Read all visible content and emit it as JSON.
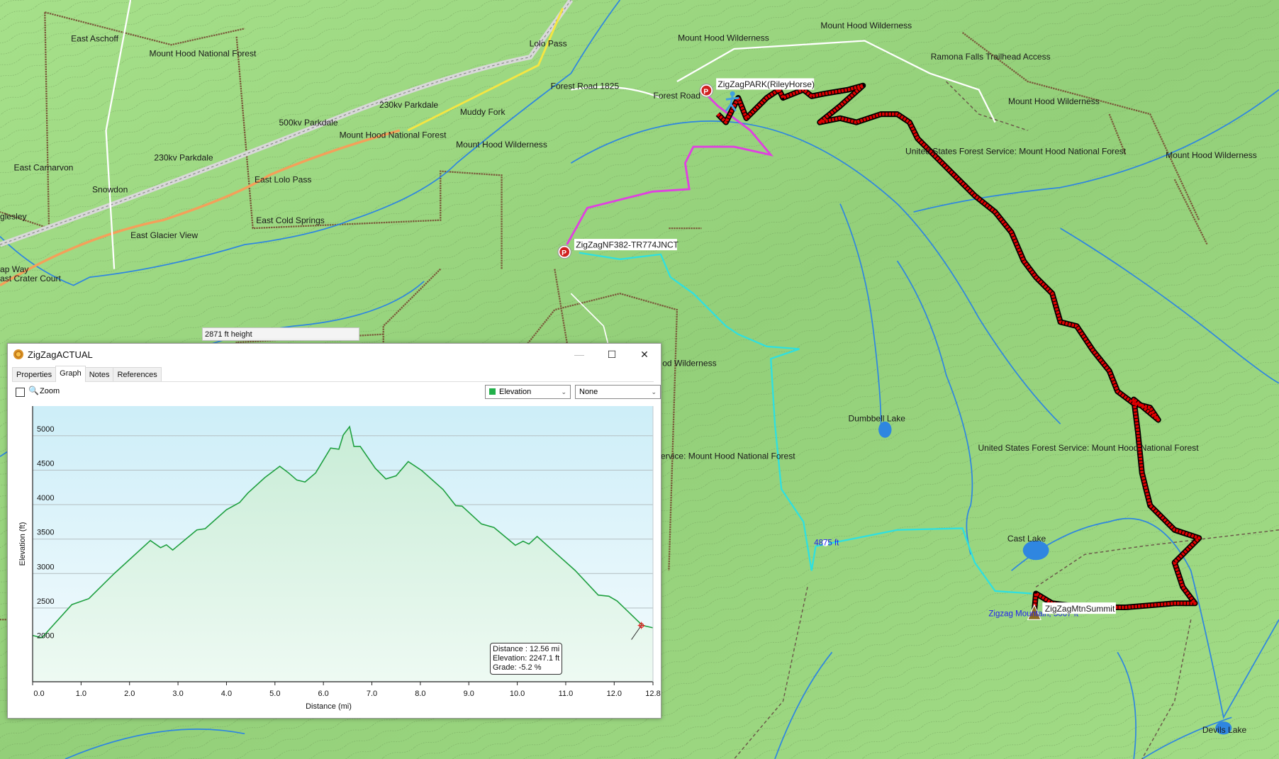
{
  "map": {
    "hover_tooltip": "2871 ft height",
    "labels": {
      "east_aschoff": "East Aschoff",
      "mhnf_1": "Mount Hood National Forest",
      "lolo_pass": "Lolo Pass",
      "forest_road_1825": "Forest Road 1825",
      "parkdale_230_a": "230kv Parkdale",
      "muddy_fork": "Muddy Fork",
      "parkdale_500": "500kv Parkdale",
      "mhnf_2": "Mount Hood National Forest",
      "mhw_1": "Mount Hood Wilderness",
      "east_carnarvon": "East Carnarvon",
      "parkdale_230_b": "230kv Parkdale",
      "east_lolo_pass": "East Lolo Pass",
      "snowdon": "Snowdon",
      "east_cold_springs": "East Cold Springs",
      "east_glacier_view": "East Glacier View",
      "glesley": "glesley",
      "ap_way": "ap Way",
      "crater_court": "ast Crater Court",
      "mhw_2": "Mount Hood Wilderness",
      "mhw_3": "Mount Hood Wilderness",
      "ramona": "Ramona Falls Trailhead Access",
      "mhw_4": "Mount Hood Wilderness",
      "usfs_1": "United States Forest Service: Mount Hood National Forest",
      "mhw_5": "Mount Hood Wilderness",
      "forest_road": "Forest Road",
      "dumbbell": "Dumbbell Lake",
      "usfs_2": "United States Forest Service: Mount Hood National Forest",
      "usfs_3": "ervice: Mount Hood National Forest",
      "od_wilderness": "od Wilderness",
      "cast_lake": "Cast Lake",
      "elev_4875": "4875 ft",
      "zigzag_mtn": "Zigzag Mountain, 5067 ft",
      "devils_lake": "Devils Lake"
    },
    "waypoints": {
      "park": "ZigZagPARK(RileyHorse)",
      "junction": "ZigZagNF382-TR774JNCT",
      "summit": "ZigZagMtnSummit"
    },
    "colors": {
      "track": "#e00000",
      "route_pink": "#e040e0",
      "route_cyan": "#2ee0e0",
      "water": "#2f86e0",
      "terrain": "#9fdc84"
    }
  },
  "dialog": {
    "title": "ZigZagACTUAL",
    "controls": {
      "minimize": "—",
      "maximize": "☐",
      "close": "✕"
    },
    "tabs": [
      {
        "label": "Properties",
        "active": false
      },
      {
        "label": "Graph",
        "active": true
      },
      {
        "label": "Notes",
        "active": false
      },
      {
        "label": "References",
        "active": false
      }
    ],
    "toolbar": {
      "zoom_checked": false,
      "zoom_label": "Zoom",
      "series_select": "Elevation",
      "series_color": "#22b04a",
      "secondary_select": "None"
    },
    "tooltip": {
      "distance": "Distance : 12.56 mi",
      "elevation": "Elevation: 2247.1 ft",
      "grade": "Grade: -5.2 %"
    }
  },
  "chart_data": {
    "type": "area",
    "xlabel": "Distance  (mi)",
    "ylabel": "Elevation (ft)",
    "xlim": [
      0,
      12.8
    ],
    "ylim": [
      1430,
      5430
    ],
    "x_ticks": [
      "0.0",
      "1.0",
      "2.0",
      "3.0",
      "4.0",
      "5.0",
      "6.0",
      "7.0",
      "8.0",
      "9.0",
      "10.0",
      "11.0",
      "12.0",
      "12.8"
    ],
    "y_ticks": [
      "2000",
      "2500",
      "3000",
      "3500",
      "4000",
      "4500",
      "5000"
    ],
    "grid": true,
    "line_color": "#1fa040",
    "series": [
      {
        "x": [
          0,
          0.19,
          0.81,
          1.16,
          1.68,
          2.43,
          2.64,
          2.76,
          2.89,
          3.39,
          3.56,
          4.0,
          4.27,
          4.44,
          4.79,
          5.1,
          5.27,
          5.45,
          5.62,
          5.84,
          6.15,
          6.32,
          6.41,
          6.54,
          6.63,
          6.76,
          7.07,
          7.29,
          7.5,
          7.75,
          8.03,
          8.47,
          8.73,
          8.86,
          9.26,
          9.52,
          9.96,
          10.12,
          10.24,
          10.41,
          10.75,
          11.19,
          11.67,
          11.89,
          12.06,
          12.58,
          12.8
        ],
        "y": [
          2103,
          2069,
          2550,
          2636,
          2997,
          3479,
          3376,
          3417,
          3342,
          3634,
          3651,
          3926,
          4030,
          4167,
          4391,
          4556,
          4467,
          4357,
          4329,
          4460,
          4821,
          4804,
          5010,
          5131,
          4845,
          4845,
          4528,
          4373,
          4418,
          4625,
          4494,
          4219,
          3985,
          3978,
          3720,
          3668,
          3410,
          3469,
          3428,
          3538,
          3324,
          3049,
          2688,
          2671,
          2602,
          2248,
          2213
        ]
      }
    ],
    "marker": {
      "x": 12.56,
      "y": 2247.1
    }
  }
}
